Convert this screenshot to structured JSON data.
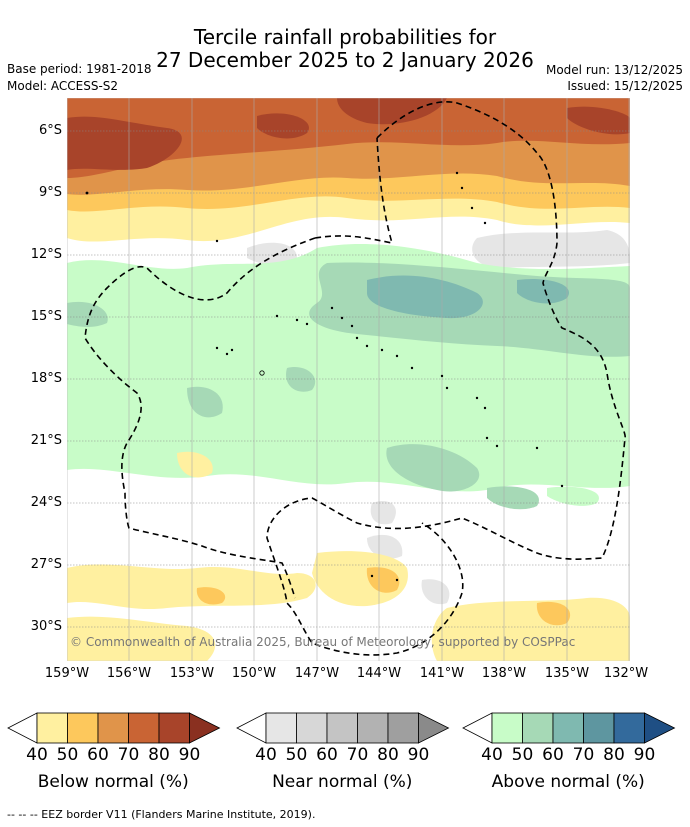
{
  "header": {
    "title_line1": "Tercile rainfall probabilities for",
    "title_line2": "27 December 2025 to 2 January 2026",
    "base_period": "Base period: 1981-2018",
    "model": "Model: ACCESS-S2",
    "model_run": "Model run: 13/12/2025",
    "issued": "Issued: 15/12/2025"
  },
  "map": {
    "lat_labels": [
      "6°S",
      "9°S",
      "12°S",
      "15°S",
      "18°S",
      "21°S",
      "24°S",
      "27°S",
      "30°S"
    ],
    "lon_labels": [
      "159°W",
      "156°W",
      "153°W",
      "150°W",
      "147°W",
      "144°W",
      "141°W",
      "138°W",
      "135°W",
      "132°W"
    ],
    "copyright": "© Commonwealth of Australia 2025, Bureau of Meteorology, supported by COSPPac"
  },
  "colorbars": [
    {
      "name": "below",
      "title": "Below normal (%)",
      "ticks": [
        "40",
        "50",
        "60",
        "70",
        "80",
        "90"
      ],
      "colors": [
        "#fff0a0",
        "#fdc85c",
        "#e0944a",
        "#c96434",
        "#a8442a",
        "#8a3020"
      ]
    },
    {
      "name": "near",
      "title": "Near normal (%)",
      "ticks": [
        "40",
        "50",
        "60",
        "70",
        "80",
        "90"
      ],
      "colors": [
        "#e6e6e6",
        "#d7d7d7",
        "#c4c4c4",
        "#b2b2b2",
        "#9f9f9f",
        "#8a8a8a"
      ]
    },
    {
      "name": "above",
      "title": "Above normal (%)",
      "ticks": [
        "40",
        "50",
        "60",
        "70",
        "80",
        "90"
      ],
      "colors": [
        "#c8fcc8",
        "#a6d9b6",
        "#7fb9b0",
        "#5e96a0",
        "#336a9c",
        "#1f4f84"
      ]
    }
  ],
  "footer": {
    "eez_note": "--  --  -- EEZ border V11 (Flanders Marine Institute, 2019)."
  }
}
